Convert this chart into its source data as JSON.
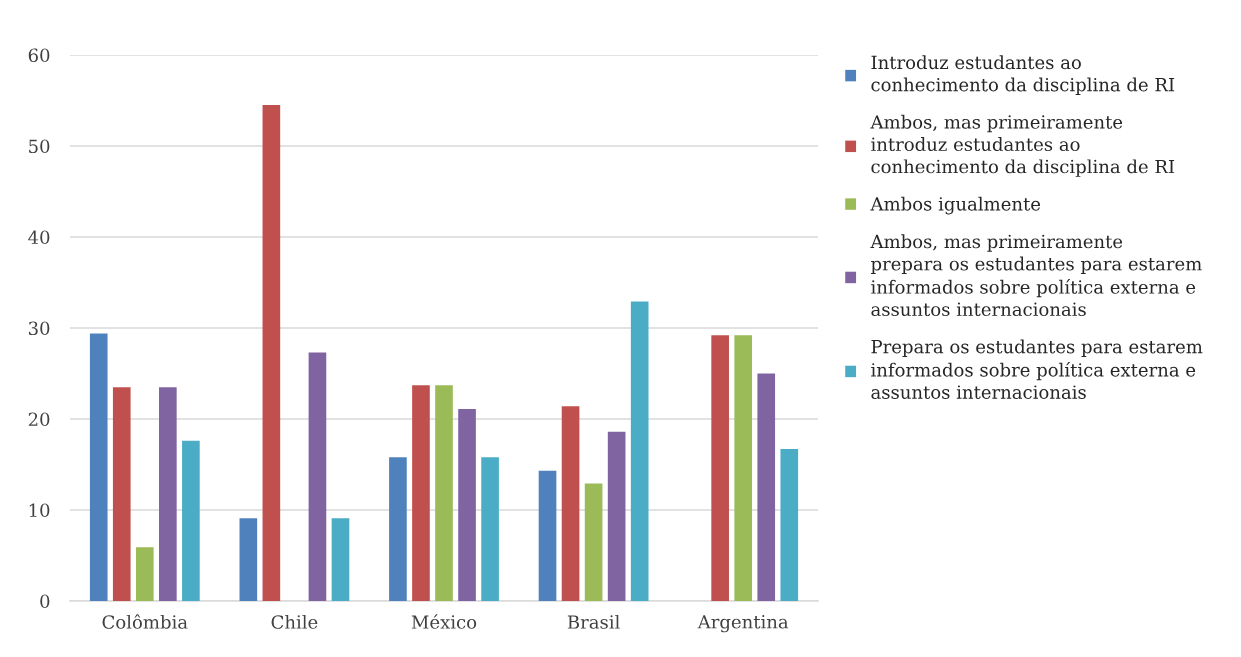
{
  "chart_data": {
    "type": "bar",
    "categories": [
      "Colômbia",
      "Chile",
      "México",
      "Brasil",
      "Argentina"
    ],
    "series": [
      {
        "name": "Introduz estudantes ao\nconhecimento da disciplina de RI",
        "color": "#4f81bd",
        "values": [
          29.4,
          9.1,
          15.8,
          14.3,
          null
        ]
      },
      {
        "name": "Ambos, mas primeiramente\nintroduz estudantes ao\nconhecimento da disciplina de RI",
        "color": "#c0504d",
        "values": [
          23.5,
          54.5,
          23.7,
          21.4,
          29.2
        ]
      },
      {
        "name": "Ambos igualmente",
        "color": "#9bbb59",
        "values": [
          5.9,
          null,
          23.7,
          12.9,
          29.2
        ]
      },
      {
        "name": "Ambos, mas primeiramente\nprepara os estudantes para estarem\ninformados sobre política externa e\nassuntos internacionais",
        "color": "#8064a2",
        "values": [
          23.5,
          27.3,
          21.1,
          18.6,
          25.0
        ]
      },
      {
        "name": "Prepara os estudantes para estarem\ninformados sobre política externa e\nassuntos internacionais",
        "color": "#4bacc6",
        "values": [
          17.6,
          9.1,
          15.8,
          32.9,
          16.7
        ]
      }
    ],
    "ylim": [
      0,
      60
    ],
    "yticks": [
      0,
      10,
      20,
      30,
      40,
      50,
      60
    ],
    "grid": "y",
    "legend": "right"
  }
}
